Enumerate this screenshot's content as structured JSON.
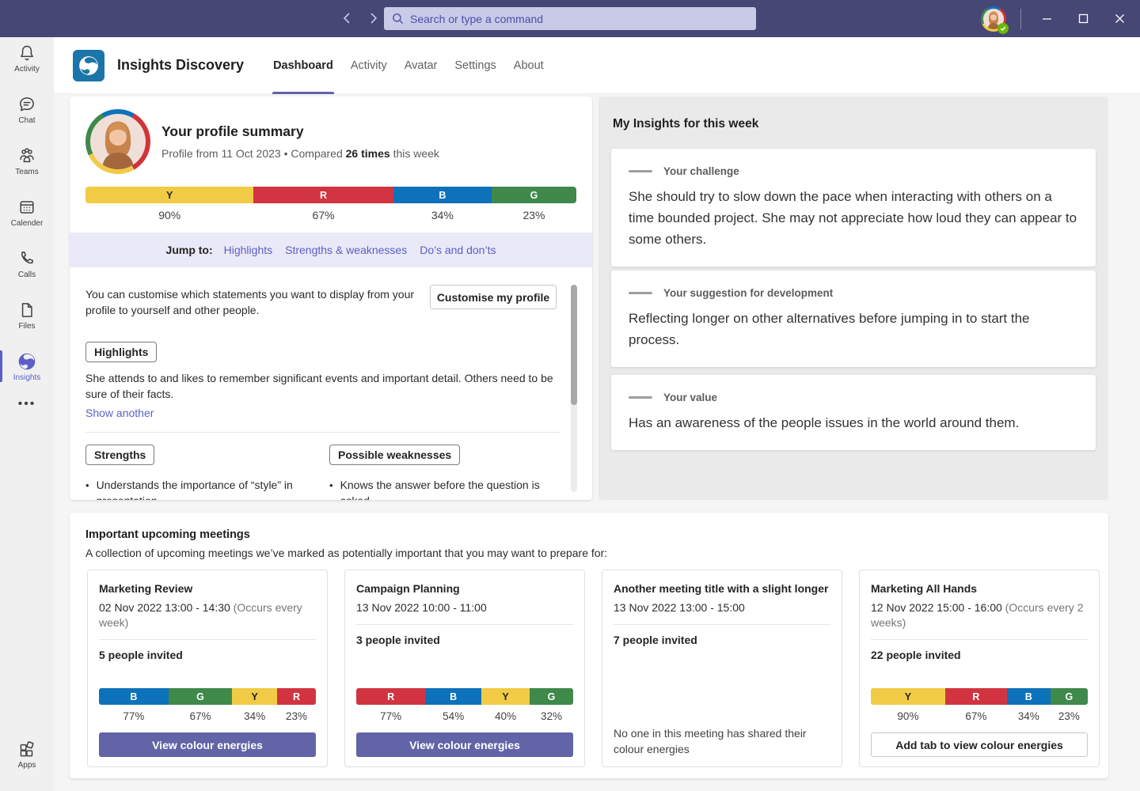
{
  "titlebar": {
    "search_placeholder": "Search or type a command"
  },
  "sidebar": {
    "items": [
      {
        "label": "Activity",
        "icon": "bell-icon",
        "active": false
      },
      {
        "label": "Chat",
        "icon": "chat-icon",
        "active": false
      },
      {
        "label": "Teams",
        "icon": "teams-people-icon",
        "active": false
      },
      {
        "label": "Calender",
        "icon": "calendar-icon",
        "active": false
      },
      {
        "label": "Calls",
        "icon": "phone-icon",
        "active": false
      },
      {
        "label": "Files",
        "icon": "file-icon",
        "active": false
      },
      {
        "label": "Insights",
        "icon": "insights-swirl-icon",
        "active": true
      }
    ],
    "apps_label": "Apps"
  },
  "header": {
    "app_title": "Insights Discovery",
    "tabs": [
      {
        "label": "Dashboard",
        "active": true
      },
      {
        "label": "Activity",
        "active": false
      },
      {
        "label": "Avatar",
        "active": false
      },
      {
        "label": "Settings",
        "active": false
      },
      {
        "label": "About",
        "active": false
      }
    ]
  },
  "profile": {
    "title": "Your profile summary",
    "meta_prefix": "Profile from 11 Oct 2023 • Compared ",
    "meta_bold": "26 times",
    "meta_suffix": " this week",
    "energies": [
      {
        "label": "Y",
        "percent": "90%",
        "value": 90,
        "color": "#F2CB46",
        "label_color": "#252423"
      },
      {
        "label": "R",
        "percent": "67%",
        "value": 67,
        "color": "#D13440",
        "label_color": "#FFFFFF"
      },
      {
        "label": "B",
        "percent": "34%",
        "value": 34,
        "color": "#0E72BA",
        "label_color": "#FFFFFF"
      },
      {
        "label": "G",
        "percent": "23%",
        "value": 23,
        "color": "#3F894B",
        "label_color": "#FFFFFF"
      }
    ],
    "jump_label": "Jump to:",
    "jump_links": [
      "Highlights",
      "Strengths & weaknesses",
      "Do’s and don’ts"
    ],
    "customise_text": "You can customise which statements you want to display from your profile to yourself and other people.",
    "customise_button": "Customise my profile",
    "highlights": {
      "badge": "Highlights",
      "text": "She attends to and likes to remember significant events and important detail. Others need to be sure of their facts.",
      "link": "Show another"
    },
    "strengths": {
      "badge": "Strengths",
      "bullet": "Understands the importance of “style” in presentation."
    },
    "weaknesses": {
      "badge": "Possible weaknesses",
      "bullet": "Knows the answer before the question is asked."
    }
  },
  "insights_week": {
    "title": "My Insights for this week",
    "cards": [
      {
        "label": "Your challenge",
        "text": "She should try to slow down the pace when interacting with others on a time bounded project. She may not appreciate how loud they can appear to some others."
      },
      {
        "label": "Your suggestion for development",
        "text": "Reflecting longer on other alternatives before jumping in to start the process."
      },
      {
        "label": "Your value",
        "text": "Has an awareness of the people issues in the world around them."
      }
    ]
  },
  "meetings": {
    "title": "Important upcoming meetings",
    "subtitle": "A collection of upcoming meetings we’ve marked as potentially important that you may want to prepare for:",
    "cards": [
      {
        "title": "Marketing Review",
        "time": "02 Nov 2022 13:00 - 14:30",
        "recurrence": " (Occurs every week)",
        "invited": "5 people invited",
        "energies": [
          {
            "label": "B",
            "percent": "77%",
            "value": 77,
            "color": "#0E72BA",
            "label_color": "#FFFFFF"
          },
          {
            "label": "G",
            "percent": "67%",
            "value": 67,
            "color": "#3F894B",
            "label_color": "#FFFFFF"
          },
          {
            "label": "Y",
            "percent": "34%",
            "value": 34,
            "color": "#F2CB46",
            "label_color": "#252423"
          },
          {
            "label": "R",
            "percent": "23%",
            "value": 23,
            "color": "#D13440",
            "label_color": "#FFFFFF"
          }
        ],
        "button": {
          "label": "View colour energies",
          "variant": "primary"
        }
      },
      {
        "title": "Campaign Planning",
        "time": "13 Nov 2022 10:00 - 11:00",
        "recurrence": "",
        "invited": "3 people invited",
        "energies": [
          {
            "label": "R",
            "percent": "77%",
            "value": 77,
            "color": "#D13440",
            "label_color": "#FFFFFF"
          },
          {
            "label": "B",
            "percent": "54%",
            "value": 54,
            "color": "#0E72BA",
            "label_color": "#FFFFFF"
          },
          {
            "label": "Y",
            "percent": "40%",
            "value": 40,
            "color": "#F2CB46",
            "label_color": "#252423"
          },
          {
            "label": "G",
            "percent": "32%",
            "value": 32,
            "color": "#3F894B",
            "label_color": "#FFFFFF"
          }
        ],
        "button": {
          "label": "View colour energies",
          "variant": "primary"
        }
      },
      {
        "title": "Another meeting title with a slight longer n...",
        "time": "13 Nov 2022 13:00 - 15:00",
        "recurrence": "",
        "invited": "7 people invited",
        "note": "No one in this meeting has shared their colour energies"
      },
      {
        "title": "Marketing All Hands",
        "time": "12 Nov 2022 15:00 - 16:00",
        "recurrence": " (Occurs every 2 weeks)",
        "invited": "22 people invited",
        "energies": [
          {
            "label": "Y",
            "percent": "90%",
            "value": 90,
            "color": "#F2CB46",
            "label_color": "#252423"
          },
          {
            "label": "R",
            "percent": "67%",
            "value": 67,
            "color": "#D13440",
            "label_color": "#FFFFFF"
          },
          {
            "label": "B",
            "percent": "34%",
            "value": 34,
            "color": "#0E72BA",
            "label_color": "#FFFFFF"
          },
          {
            "label": "G",
            "percent": "23%",
            "value": 23,
            "color": "#3F894B",
            "label_color": "#FFFFFF"
          }
        ],
        "button": {
          "label": "Add tab to view colour energies",
          "variant": "outline"
        }
      }
    ]
  },
  "colors": {
    "titlebar": "#464775",
    "accent": "#6264A7",
    "link": "#5B5FC7",
    "yellow": "#F2CB46",
    "red": "#D13440",
    "blue": "#0E72BA",
    "green": "#3F894B",
    "presence_available": "#6BB700"
  }
}
